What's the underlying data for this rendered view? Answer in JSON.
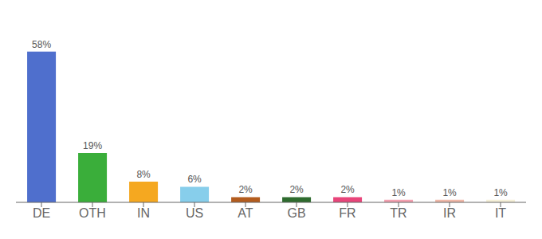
{
  "chart_data": {
    "type": "bar",
    "categories": [
      "DE",
      "OTH",
      "IN",
      "US",
      "AT",
      "GB",
      "FR",
      "TR",
      "IR",
      "IT"
    ],
    "values": [
      58,
      19,
      8,
      6,
      2,
      2,
      2,
      1,
      1,
      1
    ],
    "value_labels": [
      "58%",
      "19%",
      "8%",
      "6%",
      "2%",
      "2%",
      "2%",
      "1%",
      "1%",
      "1%"
    ],
    "colors": [
      "#4f6fcd",
      "#3aae3a",
      "#f5a820",
      "#87ceeb",
      "#b35c1e",
      "#2e6b2e",
      "#e8457a",
      "#f4a0b0",
      "#f0b8a8",
      "#f5f0d8"
    ],
    "ylim": [
      0,
      68
    ],
    "data_labels": true,
    "tick_labels": "x"
  }
}
